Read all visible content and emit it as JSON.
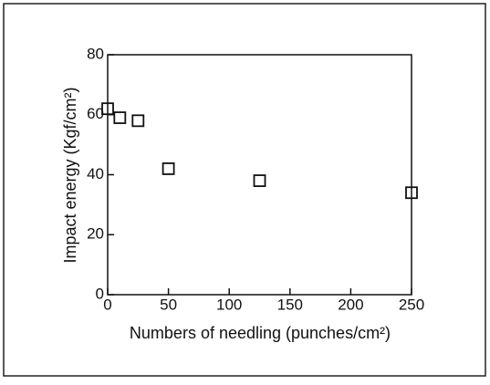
{
  "chart_data": {
    "type": "scatter",
    "x_label": "Numbers of needling (punches/cm²)",
    "y_label": "Impact energy (Kgf/cm²)",
    "series": [
      {
        "x": [
          0,
          10,
          25,
          50,
          125,
          250
        ],
        "values": [
          62,
          59,
          58,
          42,
          38,
          34
        ],
        "color": "#111111"
      }
    ],
    "xlim": [
      0,
      250
    ],
    "xticks": [
      0,
      50,
      100,
      150,
      200,
      250
    ],
    "ylim": [
      0,
      80
    ],
    "yticks": [
      0,
      20,
      40,
      60,
      80
    ]
  }
}
